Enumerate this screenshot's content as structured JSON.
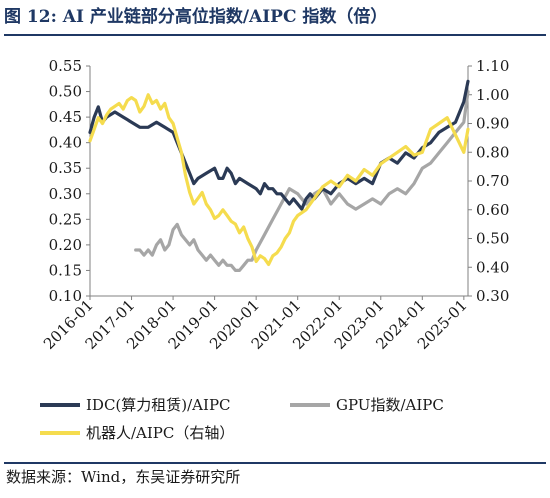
{
  "title": "图 12:  AI 产业链部分高位指数/AIPC 指数（倍）",
  "source": "数据来源：Wind，东吴证券研究所",
  "colors": {
    "idc": "#2b3a55",
    "gpu": "#a6a6a6",
    "robot": "#f5dc4e",
    "accent": "#1f3864"
  },
  "chart_data": {
    "type": "line",
    "left_axis": {
      "ylim": [
        0.1,
        0.55
      ],
      "ticks": [
        "0.10",
        "0.15",
        "0.20",
        "0.25",
        "0.30",
        "0.35",
        "0.40",
        "0.45",
        "0.50",
        "0.55"
      ]
    },
    "right_axis": {
      "ylim": [
        0.3,
        1.1
      ],
      "ticks": [
        "0.30",
        "0.40",
        "0.50",
        "0.60",
        "0.70",
        "0.80",
        "0.90",
        "1.00",
        "1.10"
      ]
    },
    "x_ticks": [
      "2016-01",
      "2017-01",
      "2018-01",
      "2019-01",
      "2020-01",
      "2021-01",
      "2022-01",
      "2023-01",
      "2024-01",
      "2025-01"
    ],
    "xlim": [
      2016.0,
      2025.1
    ],
    "grid": false,
    "legend_position": "bottom",
    "series": [
      {
        "name": "IDC(算力租赁)/AIPC",
        "axis": "left",
        "color_key": "idc",
        "x": [
          2016.0,
          2016.1,
          2016.2,
          2016.3,
          2016.4,
          2016.6,
          2016.8,
          2017.0,
          2017.2,
          2017.4,
          2017.6,
          2017.8,
          2018.0,
          2018.1,
          2018.2,
          2018.3,
          2018.4,
          2018.5,
          2018.6,
          2018.8,
          2019.0,
          2019.1,
          2019.2,
          2019.3,
          2019.4,
          2019.5,
          2019.6,
          2019.8,
          2020.0,
          2020.1,
          2020.2,
          2020.3,
          2020.4,
          2020.5,
          2020.6,
          2020.7,
          2020.8,
          2020.9,
          2021.0,
          2021.1,
          2021.2,
          2021.3,
          2021.4,
          2021.5,
          2021.6,
          2021.8,
          2022.0,
          2022.2,
          2022.4,
          2022.6,
          2022.8,
          2023.0,
          2023.2,
          2023.4,
          2023.6,
          2023.8,
          2024.0,
          2024.2,
          2024.4,
          2024.6,
          2024.8,
          2025.0,
          2025.1
        ],
        "values": [
          0.42,
          0.45,
          0.47,
          0.44,
          0.45,
          0.46,
          0.45,
          0.44,
          0.43,
          0.43,
          0.44,
          0.43,
          0.42,
          0.4,
          0.38,
          0.36,
          0.34,
          0.32,
          0.33,
          0.34,
          0.35,
          0.33,
          0.33,
          0.35,
          0.34,
          0.32,
          0.33,
          0.32,
          0.31,
          0.3,
          0.32,
          0.31,
          0.31,
          0.3,
          0.3,
          0.29,
          0.28,
          0.29,
          0.28,
          0.27,
          0.29,
          0.3,
          0.29,
          0.3,
          0.31,
          0.3,
          0.32,
          0.33,
          0.32,
          0.33,
          0.32,
          0.36,
          0.37,
          0.36,
          0.38,
          0.37,
          0.39,
          0.4,
          0.42,
          0.43,
          0.44,
          0.48,
          0.52
        ]
      },
      {
        "name": "GPU指数/AIPC",
        "axis": "left",
        "color_key": "gpu",
        "x": [
          2017.1,
          2017.2,
          2017.3,
          2017.4,
          2017.5,
          2017.6,
          2017.7,
          2017.8,
          2017.9,
          2018.0,
          2018.1,
          2018.2,
          2018.3,
          2018.4,
          2018.5,
          2018.6,
          2018.7,
          2018.8,
          2018.9,
          2019.0,
          2019.1,
          2019.2,
          2019.3,
          2019.4,
          2019.5,
          2019.6,
          2019.7,
          2019.8,
          2019.9,
          2020.0,
          2020.2,
          2020.4,
          2020.6,
          2020.8,
          2021.0,
          2021.2,
          2021.4,
          2021.6,
          2021.8,
          2022.0,
          2022.2,
          2022.4,
          2022.6,
          2022.8,
          2023.0,
          2023.2,
          2023.4,
          2023.6,
          2023.8,
          2024.0,
          2024.2,
          2024.4,
          2024.6,
          2024.8,
          2025.0,
          2025.1
        ],
        "values": [
          0.19,
          0.19,
          0.18,
          0.19,
          0.18,
          0.2,
          0.21,
          0.19,
          0.2,
          0.23,
          0.24,
          0.22,
          0.21,
          0.2,
          0.21,
          0.19,
          0.18,
          0.17,
          0.18,
          0.17,
          0.16,
          0.17,
          0.16,
          0.16,
          0.15,
          0.15,
          0.16,
          0.17,
          0.17,
          0.19,
          0.22,
          0.25,
          0.28,
          0.31,
          0.3,
          0.28,
          0.3,
          0.31,
          0.28,
          0.3,
          0.28,
          0.27,
          0.28,
          0.29,
          0.28,
          0.3,
          0.31,
          0.3,
          0.32,
          0.35,
          0.36,
          0.38,
          0.4,
          0.42,
          0.44,
          0.5
        ]
      },
      {
        "name": "机器人/AIPC（右轴）",
        "axis": "right",
        "color_key": "robot",
        "x": [
          2016.0,
          2016.1,
          2016.2,
          2016.3,
          2016.4,
          2016.5,
          2016.6,
          2016.7,
          2016.8,
          2016.9,
          2017.0,
          2017.1,
          2017.2,
          2017.3,
          2017.4,
          2017.5,
          2017.6,
          2017.7,
          2017.8,
          2017.9,
          2018.0,
          2018.1,
          2018.2,
          2018.3,
          2018.4,
          2018.5,
          2018.6,
          2018.7,
          2018.8,
          2018.9,
          2019.0,
          2019.1,
          2019.2,
          2019.3,
          2019.4,
          2019.5,
          2019.6,
          2019.7,
          2019.8,
          2019.9,
          2020.0,
          2020.1,
          2020.2,
          2020.3,
          2020.4,
          2020.5,
          2020.6,
          2020.7,
          2020.8,
          2020.9,
          2021.0,
          2021.2,
          2021.4,
          2021.6,
          2021.8,
          2022.0,
          2022.2,
          2022.4,
          2022.6,
          2022.8,
          2023.0,
          2023.2,
          2023.4,
          2023.6,
          2023.8,
          2024.0,
          2024.2,
          2024.4,
          2024.6,
          2024.8,
          2025.0,
          2025.1
        ],
        "values": [
          0.84,
          0.88,
          0.92,
          0.9,
          0.93,
          0.95,
          0.96,
          0.97,
          0.95,
          0.98,
          0.99,
          0.98,
          0.94,
          0.96,
          1.0,
          0.97,
          0.98,
          0.95,
          0.97,
          0.92,
          0.9,
          0.85,
          0.8,
          0.72,
          0.66,
          0.62,
          0.64,
          0.66,
          0.62,
          0.6,
          0.57,
          0.58,
          0.6,
          0.58,
          0.56,
          0.55,
          0.52,
          0.54,
          0.5,
          0.47,
          0.42,
          0.44,
          0.43,
          0.41,
          0.44,
          0.45,
          0.47,
          0.5,
          0.52,
          0.56,
          0.58,
          0.6,
          0.64,
          0.68,
          0.7,
          0.68,
          0.72,
          0.7,
          0.74,
          0.72,
          0.76,
          0.78,
          0.8,
          0.82,
          0.79,
          0.8,
          0.88,
          0.9,
          0.92,
          0.86,
          0.8,
          0.88
        ]
      }
    ]
  }
}
